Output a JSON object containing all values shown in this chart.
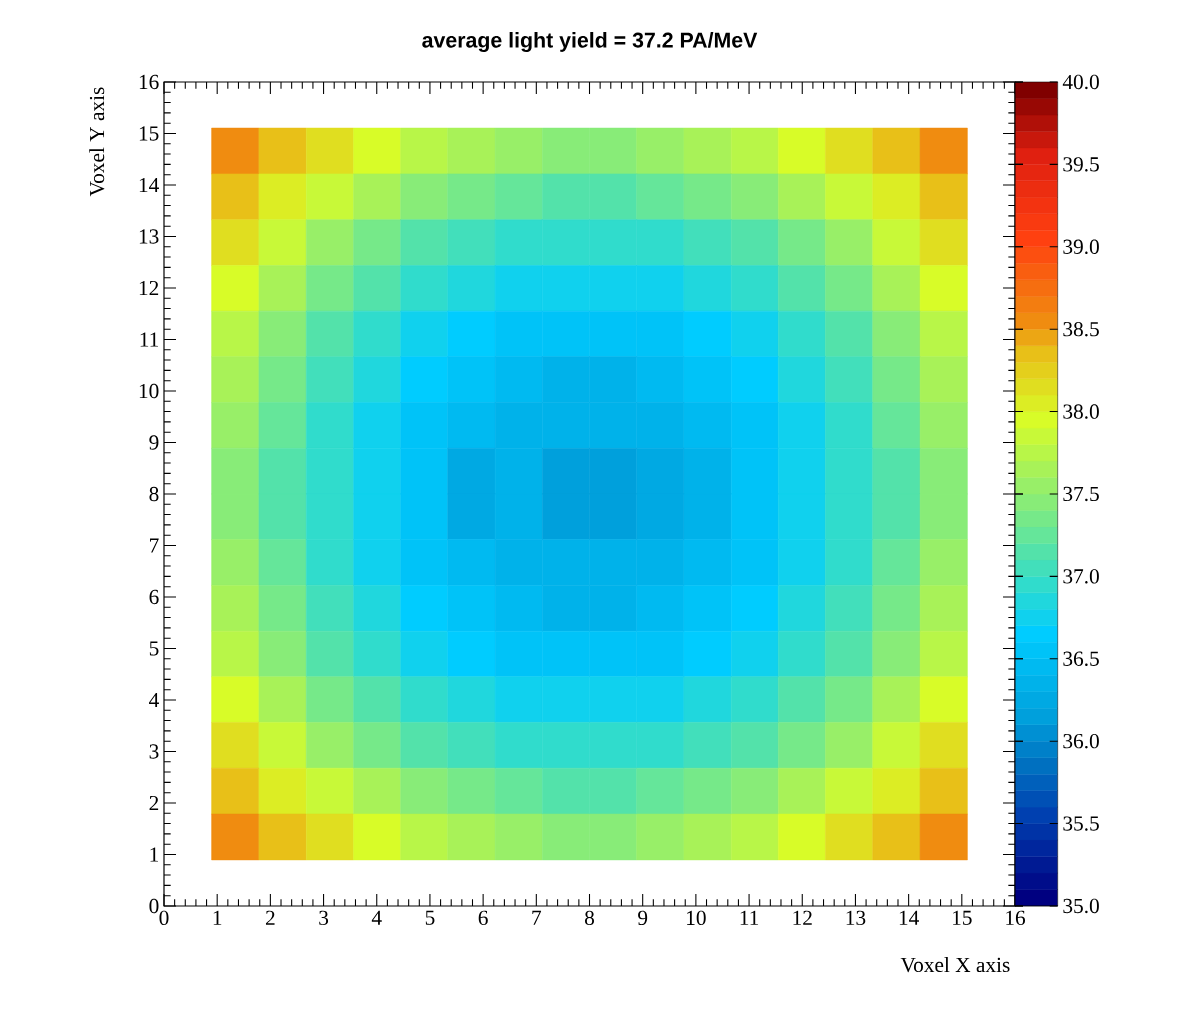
{
  "chart_data": {
    "type": "heatmap",
    "title": "average light yield = 37.2 PA/MeV",
    "xlabel": "Voxel X axis",
    "ylabel": "Voxel Y axis",
    "x": [
      1.34,
      2.23,
      3.12,
      4.01,
      4.89,
      5.78,
      6.67,
      7.56,
      8.44,
      9.33,
      10.22,
      11.11,
      11.99,
      12.88,
      13.77,
      14.66
    ],
    "y": [
      14.66,
      13.77,
      12.88,
      11.99,
      11.11,
      10.22,
      9.33,
      8.44,
      7.56,
      6.67,
      5.78,
      4.89,
      4.01,
      3.12,
      2.23,
      1.34
    ],
    "cells": [
      [
        38.55,
        38.35,
        38.15,
        37.95,
        37.75,
        37.65,
        37.55,
        37.45,
        37.45,
        37.55,
        37.65,
        37.75,
        37.95,
        38.15,
        38.35,
        38.55
      ],
      [
        38.35,
        38.05,
        37.85,
        37.65,
        37.45,
        37.35,
        37.25,
        37.15,
        37.15,
        37.25,
        37.35,
        37.45,
        37.65,
        37.85,
        38.05,
        38.35
      ],
      [
        38.15,
        37.85,
        37.55,
        37.35,
        37.15,
        37.05,
        36.95,
        36.95,
        36.95,
        36.95,
        37.05,
        37.15,
        37.35,
        37.55,
        37.85,
        38.15
      ],
      [
        37.95,
        37.65,
        37.35,
        37.15,
        36.95,
        36.85,
        36.75,
        36.75,
        36.75,
        36.75,
        36.85,
        36.95,
        37.15,
        37.35,
        37.65,
        37.95
      ],
      [
        37.75,
        37.45,
        37.15,
        36.95,
        36.75,
        36.65,
        36.55,
        36.55,
        36.55,
        36.55,
        36.65,
        36.75,
        36.95,
        37.15,
        37.45,
        37.75
      ],
      [
        37.65,
        37.35,
        37.05,
        36.85,
        36.65,
        36.55,
        36.45,
        36.35,
        36.35,
        36.45,
        36.55,
        36.65,
        36.85,
        37.05,
        37.35,
        37.65
      ],
      [
        37.55,
        37.25,
        36.95,
        36.75,
        36.55,
        36.45,
        36.35,
        36.35,
        36.35,
        36.35,
        36.45,
        36.55,
        36.75,
        36.95,
        37.25,
        37.55
      ],
      [
        37.45,
        37.15,
        36.95,
        36.75,
        36.55,
        36.25,
        36.35,
        36.15,
        36.15,
        36.25,
        36.35,
        36.55,
        36.75,
        36.95,
        37.15,
        37.45
      ],
      [
        37.45,
        37.15,
        36.95,
        36.75,
        36.55,
        36.25,
        36.35,
        36.15,
        36.15,
        36.25,
        36.35,
        36.55,
        36.75,
        36.95,
        37.15,
        37.45
      ],
      [
        37.55,
        37.25,
        36.95,
        36.75,
        36.55,
        36.45,
        36.35,
        36.35,
        36.35,
        36.35,
        36.45,
        36.55,
        36.75,
        36.95,
        37.25,
        37.55
      ],
      [
        37.65,
        37.35,
        37.05,
        36.85,
        36.65,
        36.55,
        36.45,
        36.35,
        36.35,
        36.45,
        36.55,
        36.65,
        36.85,
        37.05,
        37.35,
        37.65
      ],
      [
        37.75,
        37.45,
        37.15,
        36.95,
        36.75,
        36.65,
        36.55,
        36.55,
        36.55,
        36.55,
        36.65,
        36.75,
        36.95,
        37.15,
        37.45,
        37.75
      ],
      [
        37.95,
        37.65,
        37.35,
        37.15,
        36.95,
        36.85,
        36.75,
        36.75,
        36.75,
        36.75,
        36.85,
        36.95,
        37.15,
        37.35,
        37.65,
        37.95
      ],
      [
        38.15,
        37.85,
        37.55,
        37.35,
        37.15,
        37.05,
        36.95,
        36.95,
        36.95,
        36.95,
        37.05,
        37.15,
        37.35,
        37.55,
        37.85,
        38.15
      ],
      [
        38.35,
        38.05,
        37.85,
        37.65,
        37.45,
        37.35,
        37.25,
        37.15,
        37.15,
        37.25,
        37.35,
        37.45,
        37.65,
        37.85,
        38.05,
        38.35
      ],
      [
        38.55,
        38.35,
        38.15,
        37.95,
        37.75,
        37.65,
        37.55,
        37.45,
        37.45,
        37.55,
        37.65,
        37.75,
        37.95,
        38.15,
        38.35,
        38.55
      ]
    ],
    "xlim": [
      0,
      16
    ],
    "ylim": [
      0,
      16
    ],
    "xticks": [
      0,
      1,
      2,
      3,
      4,
      5,
      6,
      7,
      8,
      9,
      10,
      11,
      12,
      13,
      14,
      15,
      16
    ],
    "yticks": [
      0,
      1,
      2,
      3,
      4,
      5,
      6,
      7,
      8,
      9,
      10,
      11,
      12,
      13,
      14,
      15,
      16
    ],
    "clim": [
      35,
      40
    ],
    "cticks": [
      {
        "value": 35,
        "label": "35.0"
      },
      {
        "value": 35.5,
        "label": "35.5"
      },
      {
        "value": 36,
        "label": "36.0"
      },
      {
        "value": 36.5,
        "label": "36.5"
      },
      {
        "value": 37,
        "label": "37.0"
      },
      {
        "value": 37.5,
        "label": "37.5"
      },
      {
        "value": 38,
        "label": "38.0"
      },
      {
        "value": 38.5,
        "label": "38.5"
      },
      {
        "value": 39,
        "label": "39.0"
      },
      {
        "value": 39.5,
        "label": "39.5"
      },
      {
        "value": 40,
        "label": "40.0"
      }
    ]
  }
}
